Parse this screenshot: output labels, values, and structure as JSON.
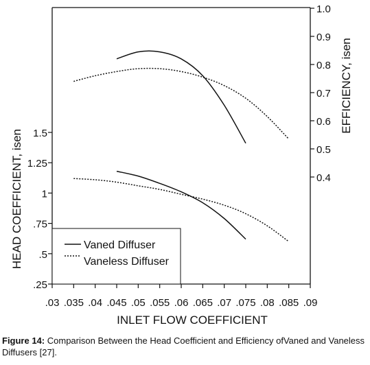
{
  "chart_data": {
    "type": "line",
    "xlabel": "INLET FLOW COEFFICIENT",
    "ylabel_left": "HEAD COEFFICIENT, isen",
    "ylabel_right": "EFFICIENCY, isen",
    "x_ticks": [
      ".03",
      ".035",
      ".04",
      ".045",
      ".05",
      ".055",
      ".06",
      ".065",
      ".07",
      ".075",
      ".08",
      ".085",
      ".09"
    ],
    "xlim": [
      0.03,
      0.09
    ],
    "y_left_ticks": [
      {
        "label": ".25",
        "value": 0.25
      },
      {
        "label": ".5",
        "value": 0.5
      },
      {
        "label": ".75",
        "value": 0.75
      },
      {
        "label": "1",
        "value": 1.0
      },
      {
        "label": "1.25",
        "value": 1.25
      },
      {
        "label": "1.5",
        "value": 1.5
      }
    ],
    "y_right_ticks": [
      {
        "label": "0.4",
        "value": 0.4
      },
      {
        "label": "0.5",
        "value": 0.5
      },
      {
        "label": "0.6",
        "value": 0.6
      },
      {
        "label": "0.7",
        "value": 0.7
      },
      {
        "label": "0.8",
        "value": 0.8
      },
      {
        "label": "0.9",
        "value": 0.9
      },
      {
        "label": "1.0",
        "value": 1.0
      }
    ],
    "y_left_range": [
      0.25,
      1.5
    ],
    "y_right_range": [
      0.4,
      1.0
    ],
    "series": [
      {
        "name": "Vaned Diffuser",
        "quantity": "head coefficient",
        "axis": "left",
        "style": "solid",
        "x": [
          0.045,
          0.05,
          0.055,
          0.06,
          0.065,
          0.07,
          0.075
        ],
        "y": [
          1.18,
          1.14,
          1.08,
          1.01,
          0.92,
          0.79,
          0.62
        ]
      },
      {
        "name": "Vaneless Diffuser",
        "quantity": "head coefficient",
        "axis": "left",
        "style": "dotted",
        "x": [
          0.035,
          0.04,
          0.045,
          0.05,
          0.055,
          0.06,
          0.065,
          0.07,
          0.075,
          0.08,
          0.085
        ],
        "y": [
          1.12,
          1.11,
          1.09,
          1.06,
          1.03,
          0.99,
          0.95,
          0.9,
          0.83,
          0.73,
          0.6
        ]
      },
      {
        "name": "Vaned Diffuser",
        "quantity": "efficiency",
        "axis": "right",
        "style": "solid",
        "x": [
          0.045,
          0.05,
          0.055,
          0.06,
          0.065,
          0.07,
          0.075
        ],
        "y": [
          0.82,
          0.845,
          0.845,
          0.82,
          0.76,
          0.655,
          0.52
        ]
      },
      {
        "name": "Vaneless Diffuser",
        "quantity": "efficiency",
        "axis": "right",
        "style": "dotted",
        "x": [
          0.035,
          0.04,
          0.045,
          0.05,
          0.055,
          0.06,
          0.065,
          0.07,
          0.075,
          0.08,
          0.085
        ],
        "y": [
          0.74,
          0.76,
          0.775,
          0.785,
          0.785,
          0.775,
          0.755,
          0.725,
          0.68,
          0.615,
          0.535
        ]
      }
    ],
    "legend": {
      "placement": "bottom-left",
      "entries": [
        {
          "label": "Vaned Diffuser",
          "style": "solid"
        },
        {
          "label": "Vaneless Diffuser",
          "style": "dotted"
        }
      ]
    },
    "grid": false
  },
  "caption": {
    "label": "Figure 14:",
    "text": "Comparison Between the Head Coefficient and Efficiency ofVaned and Vaneless Diffusers [27]."
  }
}
